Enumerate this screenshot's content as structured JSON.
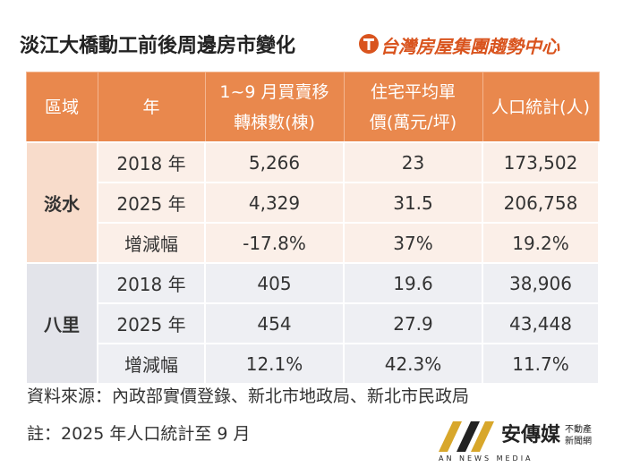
{
  "title": "淡江大橋動工前後周邊房市變化",
  "logo": "台灣房屋集團趨勢中心",
  "table": {
    "header": [
      "區域",
      "年",
      [
        "1~9 月買賣移",
        "轉棟數(棟)"
      ],
      [
        "住宅平均單",
        "價(萬元/坪)"
      ],
      "人口統計(人)"
    ],
    "groups": [
      {
        "region": "淡水",
        "rows": [
          [
            "2018 年",
            "5,266",
            "23",
            "173,502"
          ],
          [
            "2025 年",
            "4,329",
            "31.5",
            "206,758"
          ],
          [
            "增減幅",
            "-17.8%",
            "37%",
            "19.2%"
          ]
        ]
      },
      {
        "region": "八里",
        "rows": [
          [
            "2018 年",
            "405",
            "19.6",
            "38,906"
          ],
          [
            "2025 年",
            "454",
            "27.9",
            "43,448"
          ],
          [
            "增減幅",
            "12.1%",
            "42.3%",
            "11.7%"
          ]
        ]
      }
    ]
  },
  "source": "資料來源：內政部實價登錄、新北市地政局、新北市民政局",
  "note": "註：2025 年人口統計至 9 月",
  "watermark": {
    "brand": "安傳媒",
    "sub1": "不動產",
    "sub2": "新聞網",
    "english": "AN NEWS MEDIA"
  }
}
